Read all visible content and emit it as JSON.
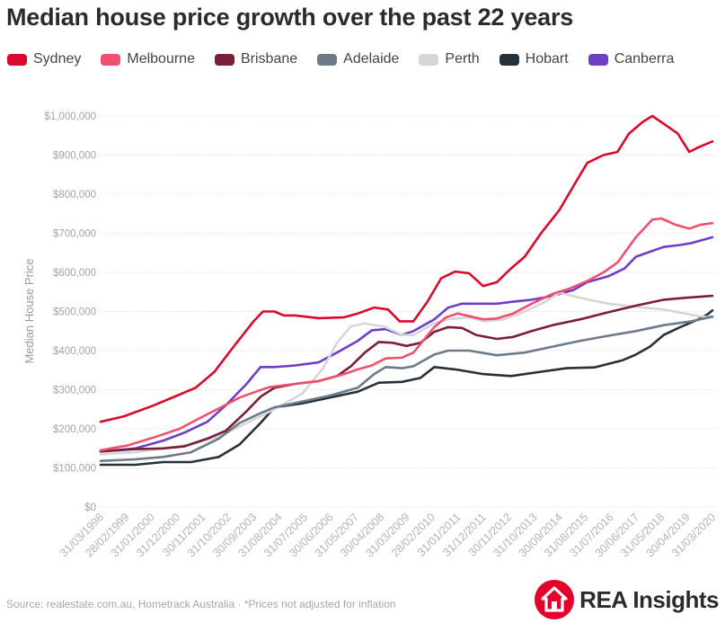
{
  "chart_data": {
    "type": "line",
    "title": "Median house price growth over the past 22 years",
    "ylabel": "Median House Price",
    "xlabel": "",
    "ylim": [
      0,
      1000000
    ],
    "yticks": [
      "$0",
      "$100,000",
      "$200,000",
      "$300,000",
      "$400,000",
      "$500,000",
      "$600,000",
      "$700,000",
      "$800,000",
      "$900,000",
      "$1,000,000"
    ],
    "x_tick_labels": [
      "31/03/1998",
      "28/02/1999",
      "31/01/2000",
      "31/12/2000",
      "30/11/2001",
      "31/10/2002",
      "30/09/2003",
      "31/08/2004",
      "31/07/2005",
      "30/06/2006",
      "31/05/2007",
      "30/04/2008",
      "31/03/2009",
      "28/02/2010",
      "31/01/2011",
      "31/12/2011",
      "30/11/2012",
      "31/10/2013",
      "30/09/2014",
      "31/08/2015",
      "31/07/2016",
      "30/06/2017",
      "31/05/2018",
      "30/04/2019",
      "31/03/2020"
    ],
    "x_start": "1998-03-31",
    "x_end": "2020-03-31",
    "grid": true,
    "legend_position": "top",
    "series": [
      {
        "name": "Sydney",
        "color": "#d8092b",
        "points": [
          [
            "1998-03-31",
            218000
          ],
          [
            "1999-01-31",
            232000
          ],
          [
            "2000-01-31",
            258000
          ],
          [
            "2000-12-31",
            285000
          ],
          [
            "2001-08-31",
            305000
          ],
          [
            "2002-04-30",
            345000
          ],
          [
            "2003-01-31",
            415000
          ],
          [
            "2003-09-30",
            475000
          ],
          [
            "2004-01-31",
            500000
          ],
          [
            "2004-06-30",
            500000
          ],
          [
            "2004-10-31",
            490000
          ],
          [
            "2005-03-31",
            490000
          ],
          [
            "2006-01-31",
            483000
          ],
          [
            "2006-12-31",
            485000
          ],
          [
            "2007-06-30",
            495000
          ],
          [
            "2008-01-31",
            510000
          ],
          [
            "2008-07-31",
            505000
          ],
          [
            "2008-12-31",
            475000
          ],
          [
            "2009-06-30",
            475000
          ],
          [
            "2009-12-31",
            525000
          ],
          [
            "2010-06-30",
            585000
          ],
          [
            "2010-12-31",
            602000
          ],
          [
            "2011-06-30",
            598000
          ],
          [
            "2011-12-31",
            565000
          ],
          [
            "2012-06-30",
            575000
          ],
          [
            "2012-12-31",
            610000
          ],
          [
            "2013-06-30",
            640000
          ],
          [
            "2014-01-31",
            700000
          ],
          [
            "2014-09-30",
            760000
          ],
          [
            "2015-04-30",
            830000
          ],
          [
            "2015-09-30",
            880000
          ],
          [
            "2016-04-30",
            900000
          ],
          [
            "2016-10-31",
            908000
          ],
          [
            "2017-03-31",
            955000
          ],
          [
            "2017-09-30",
            985000
          ],
          [
            "2018-01-31",
            1000000
          ],
          [
            "2018-06-30",
            980000
          ],
          [
            "2018-12-31",
            955000
          ],
          [
            "2019-05-31",
            908000
          ],
          [
            "2019-09-30",
            920000
          ],
          [
            "2020-03-31",
            935000
          ]
        ]
      },
      {
        "name": "Melbourne",
        "color": "#f0506e",
        "points": [
          [
            "1998-03-31",
            145000
          ],
          [
            "1999-03-31",
            158000
          ],
          [
            "2000-03-31",
            180000
          ],
          [
            "2001-01-31",
            200000
          ],
          [
            "2001-09-30",
            225000
          ],
          [
            "2002-06-30",
            252000
          ],
          [
            "2003-03-31",
            280000
          ],
          [
            "2003-10-31",
            295000
          ],
          [
            "2004-04-30",
            307000
          ],
          [
            "2005-03-31",
            315000
          ],
          [
            "2006-01-31",
            322000
          ],
          [
            "2006-12-31",
            340000
          ],
          [
            "2007-06-30",
            352000
          ],
          [
            "2007-12-31",
            362000
          ],
          [
            "2008-06-30",
            380000
          ],
          [
            "2009-01-31",
            382000
          ],
          [
            "2009-06-30",
            395000
          ],
          [
            "2010-03-31",
            460000
          ],
          [
            "2010-08-31",
            485000
          ],
          [
            "2011-01-31",
            495000
          ],
          [
            "2011-06-30",
            488000
          ],
          [
            "2011-12-31",
            480000
          ],
          [
            "2012-06-30",
            482000
          ],
          [
            "2013-01-31",
            495000
          ],
          [
            "2013-09-30",
            520000
          ],
          [
            "2014-06-30",
            545000
          ],
          [
            "2015-01-31",
            558000
          ],
          [
            "2015-09-30",
            578000
          ],
          [
            "2016-04-30",
            600000
          ],
          [
            "2016-10-31",
            625000
          ],
          [
            "2017-06-30",
            690000
          ],
          [
            "2018-01-31",
            735000
          ],
          [
            "2018-05-31",
            738000
          ],
          [
            "2018-11-30",
            722000
          ],
          [
            "2019-05-31",
            712000
          ],
          [
            "2019-10-31",
            722000
          ],
          [
            "2020-03-31",
            726000
          ]
        ]
      },
      {
        "name": "Brisbane",
        "color": "#7a1f35",
        "points": [
          [
            "1998-03-31",
            142000
          ],
          [
            "1999-06-30",
            148000
          ],
          [
            "2000-06-30",
            150000
          ],
          [
            "2001-03-31",
            155000
          ],
          [
            "2002-01-31",
            175000
          ],
          [
            "2002-09-30",
            195000
          ],
          [
            "2003-06-30",
            245000
          ],
          [
            "2003-12-31",
            282000
          ],
          [
            "2004-06-30",
            305000
          ],
          [
            "2005-03-31",
            315000
          ],
          [
            "2006-01-31",
            322000
          ],
          [
            "2006-09-30",
            335000
          ],
          [
            "2007-03-31",
            360000
          ],
          [
            "2007-09-30",
            395000
          ],
          [
            "2008-03-31",
            422000
          ],
          [
            "2008-09-30",
            420000
          ],
          [
            "2009-03-31",
            412000
          ],
          [
            "2009-09-30",
            420000
          ],
          [
            "2010-03-31",
            448000
          ],
          [
            "2010-09-30",
            460000
          ],
          [
            "2011-03-31",
            458000
          ],
          [
            "2011-09-30",
            440000
          ],
          [
            "2012-06-30",
            430000
          ],
          [
            "2013-01-31",
            435000
          ],
          [
            "2013-09-30",
            450000
          ],
          [
            "2014-06-30",
            465000
          ],
          [
            "2015-06-30",
            480000
          ],
          [
            "2016-06-30",
            498000
          ],
          [
            "2017-06-30",
            515000
          ],
          [
            "2018-06-30",
            530000
          ],
          [
            "2019-03-31",
            535000
          ],
          [
            "2020-03-31",
            540000
          ]
        ]
      },
      {
        "name": "Adelaide",
        "color": "#6c7a89",
        "points": [
          [
            "1998-03-31",
            118000
          ],
          [
            "1999-06-30",
            122000
          ],
          [
            "2000-06-30",
            128000
          ],
          [
            "2001-06-30",
            140000
          ],
          [
            "2002-06-30",
            175000
          ],
          [
            "2003-03-31",
            215000
          ],
          [
            "2003-12-31",
            240000
          ],
          [
            "2004-06-30",
            255000
          ],
          [
            "2005-06-30",
            270000
          ],
          [
            "2006-06-30",
            285000
          ],
          [
            "2007-06-30",
            305000
          ],
          [
            "2008-01-31",
            340000
          ],
          [
            "2008-06-30",
            358000
          ],
          [
            "2009-01-31",
            355000
          ],
          [
            "2009-06-30",
            360000
          ],
          [
            "2010-03-31",
            390000
          ],
          [
            "2010-09-30",
            400000
          ],
          [
            "2011-06-30",
            400000
          ],
          [
            "2012-06-30",
            388000
          ],
          [
            "2013-06-30",
            395000
          ],
          [
            "2014-06-30",
            410000
          ],
          [
            "2015-06-30",
            425000
          ],
          [
            "2016-06-30",
            438000
          ],
          [
            "2017-06-30",
            450000
          ],
          [
            "2018-06-30",
            465000
          ],
          [
            "2019-06-30",
            475000
          ],
          [
            "2020-03-31",
            487000
          ]
        ]
      },
      {
        "name": "Perth",
        "color": "#d4d6d8",
        "points": [
          [
            "1998-03-31",
            135000
          ],
          [
            "1999-06-30",
            140000
          ],
          [
            "2000-06-30",
            150000
          ],
          [
            "2001-06-30",
            160000
          ],
          [
            "2002-06-30",
            180000
          ],
          [
            "2003-06-30",
            215000
          ],
          [
            "2004-06-30",
            250000
          ],
          [
            "2005-06-30",
            290000
          ],
          [
            "2006-03-31",
            355000
          ],
          [
            "2006-09-30",
            420000
          ],
          [
            "2007-03-31",
            462000
          ],
          [
            "2007-09-30",
            470000
          ],
          [
            "2008-06-30",
            460000
          ],
          [
            "2009-01-31",
            440000
          ],
          [
            "2009-06-30",
            440000
          ],
          [
            "2010-03-31",
            470000
          ],
          [
            "2010-09-30",
            480000
          ],
          [
            "2011-06-30",
            485000
          ],
          [
            "2012-01-31",
            475000
          ],
          [
            "2012-09-30",
            480000
          ],
          [
            "2013-06-30",
            500000
          ],
          [
            "2014-03-31",
            525000
          ],
          [
            "2014-09-30",
            548000
          ],
          [
            "2015-06-30",
            535000
          ],
          [
            "2016-06-30",
            520000
          ],
          [
            "2017-06-30",
            512000
          ],
          [
            "2018-06-30",
            505000
          ],
          [
            "2019-03-31",
            495000
          ],
          [
            "2019-09-30",
            488000
          ],
          [
            "2020-03-31",
            485000
          ]
        ]
      },
      {
        "name": "Hobart",
        "color": "#263238",
        "points": [
          [
            "1998-03-31",
            108000
          ],
          [
            "1999-06-30",
            108000
          ],
          [
            "2000-06-30",
            115000
          ],
          [
            "2001-06-30",
            115000
          ],
          [
            "2002-06-30",
            128000
          ],
          [
            "2003-03-31",
            160000
          ],
          [
            "2003-12-31",
            215000
          ],
          [
            "2004-06-30",
            255000
          ],
          [
            "2005-06-30",
            265000
          ],
          [
            "2006-06-30",
            280000
          ],
          [
            "2007-06-30",
            295000
          ],
          [
            "2008-03-31",
            318000
          ],
          [
            "2009-01-31",
            320000
          ],
          [
            "2009-09-30",
            330000
          ],
          [
            "2010-03-31",
            358000
          ],
          [
            "2010-12-31",
            352000
          ],
          [
            "2011-12-31",
            340000
          ],
          [
            "2012-12-31",
            335000
          ],
          [
            "2013-12-31",
            345000
          ],
          [
            "2014-12-31",
            355000
          ],
          [
            "2015-12-31",
            357000
          ],
          [
            "2016-12-31",
            375000
          ],
          [
            "2017-06-30",
            390000
          ],
          [
            "2017-12-31",
            410000
          ],
          [
            "2018-06-30",
            440000
          ],
          [
            "2019-01-31",
            460000
          ],
          [
            "2019-09-30",
            480000
          ],
          [
            "2020-01-31",
            493000
          ],
          [
            "2020-03-31",
            503000
          ]
        ]
      },
      {
        "name": "Canberra",
        "color": "#6e3fc6",
        "points": [
          [
            "1998-03-31",
            142000
          ],
          [
            "1999-06-30",
            150000
          ],
          [
            "2000-06-30",
            170000
          ],
          [
            "2001-03-31",
            190000
          ],
          [
            "2002-01-31",
            218000
          ],
          [
            "2002-09-30",
            260000
          ],
          [
            "2003-06-30",
            315000
          ],
          [
            "2003-12-31",
            358000
          ],
          [
            "2004-06-30",
            358000
          ],
          [
            "2005-03-31",
            362000
          ],
          [
            "2006-01-31",
            370000
          ],
          [
            "2006-09-30",
            395000
          ],
          [
            "2007-06-30",
            425000
          ],
          [
            "2007-12-31",
            452000
          ],
          [
            "2008-06-30",
            455000
          ],
          [
            "2009-01-31",
            440000
          ],
          [
            "2009-06-30",
            450000
          ],
          [
            "2010-03-31",
            480000
          ],
          [
            "2010-09-30",
            510000
          ],
          [
            "2011-03-31",
            520000
          ],
          [
            "2011-12-31",
            520000
          ],
          [
            "2012-06-30",
            520000
          ],
          [
            "2013-01-31",
            525000
          ],
          [
            "2013-09-30",
            530000
          ],
          [
            "2014-06-30",
            540000
          ],
          [
            "2015-03-31",
            555000
          ],
          [
            "2015-09-30",
            575000
          ],
          [
            "2016-06-30",
            590000
          ],
          [
            "2017-01-31",
            610000
          ],
          [
            "2017-06-30",
            640000
          ],
          [
            "2018-01-31",
            655000
          ],
          [
            "2018-06-30",
            665000
          ],
          [
            "2019-01-31",
            670000
          ],
          [
            "2019-06-30",
            675000
          ],
          [
            "2020-03-31",
            690000
          ]
        ]
      }
    ]
  },
  "footer": {
    "source": "Source: realestate.com.au, Hometrack Australia · *Prices not adjusted for inflation",
    "brand": "REA Insights",
    "brand_color": "#e4002b"
  }
}
